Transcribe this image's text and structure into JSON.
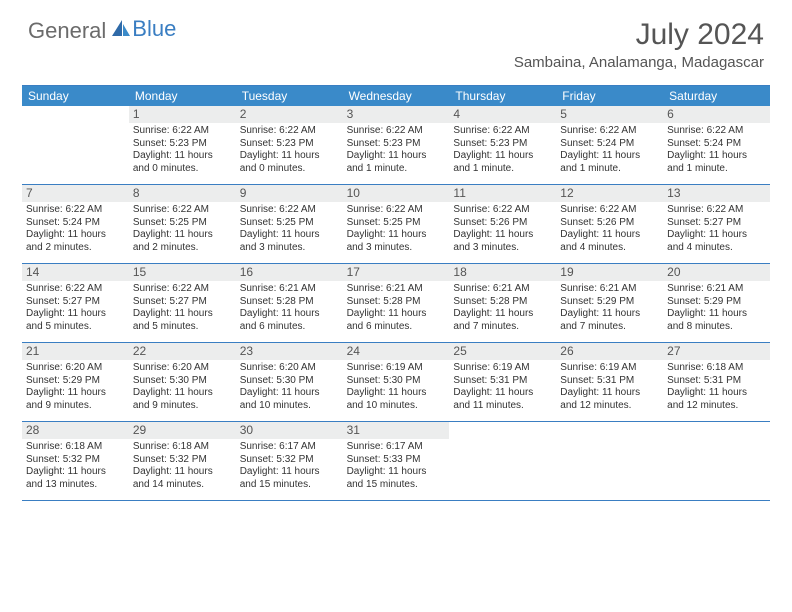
{
  "brand": {
    "part1": "General",
    "part2": "Blue"
  },
  "title": "July 2024",
  "location": "Sambaina, Analamanga, Madagascar",
  "colors": {
    "header_bg": "#3a8ac9",
    "border": "#3a7ec2",
    "daynum_bg": "#eceded",
    "text": "#333333",
    "title_text": "#555555"
  },
  "weekdays": [
    "Sunday",
    "Monday",
    "Tuesday",
    "Wednesday",
    "Thursday",
    "Friday",
    "Saturday"
  ],
  "weeks": [
    [
      {
        "n": "",
        "sr": "",
        "ss": "",
        "dl": ""
      },
      {
        "n": "1",
        "sr": "Sunrise: 6:22 AM",
        "ss": "Sunset: 5:23 PM",
        "dl": "Daylight: 11 hours and 0 minutes."
      },
      {
        "n": "2",
        "sr": "Sunrise: 6:22 AM",
        "ss": "Sunset: 5:23 PM",
        "dl": "Daylight: 11 hours and 0 minutes."
      },
      {
        "n": "3",
        "sr": "Sunrise: 6:22 AM",
        "ss": "Sunset: 5:23 PM",
        "dl": "Daylight: 11 hours and 1 minute."
      },
      {
        "n": "4",
        "sr": "Sunrise: 6:22 AM",
        "ss": "Sunset: 5:23 PM",
        "dl": "Daylight: 11 hours and 1 minute."
      },
      {
        "n": "5",
        "sr": "Sunrise: 6:22 AM",
        "ss": "Sunset: 5:24 PM",
        "dl": "Daylight: 11 hours and 1 minute."
      },
      {
        "n": "6",
        "sr": "Sunrise: 6:22 AM",
        "ss": "Sunset: 5:24 PM",
        "dl": "Daylight: 11 hours and 1 minute."
      }
    ],
    [
      {
        "n": "7",
        "sr": "Sunrise: 6:22 AM",
        "ss": "Sunset: 5:24 PM",
        "dl": "Daylight: 11 hours and 2 minutes."
      },
      {
        "n": "8",
        "sr": "Sunrise: 6:22 AM",
        "ss": "Sunset: 5:25 PM",
        "dl": "Daylight: 11 hours and 2 minutes."
      },
      {
        "n": "9",
        "sr": "Sunrise: 6:22 AM",
        "ss": "Sunset: 5:25 PM",
        "dl": "Daylight: 11 hours and 3 minutes."
      },
      {
        "n": "10",
        "sr": "Sunrise: 6:22 AM",
        "ss": "Sunset: 5:25 PM",
        "dl": "Daylight: 11 hours and 3 minutes."
      },
      {
        "n": "11",
        "sr": "Sunrise: 6:22 AM",
        "ss": "Sunset: 5:26 PM",
        "dl": "Daylight: 11 hours and 3 minutes."
      },
      {
        "n": "12",
        "sr": "Sunrise: 6:22 AM",
        "ss": "Sunset: 5:26 PM",
        "dl": "Daylight: 11 hours and 4 minutes."
      },
      {
        "n": "13",
        "sr": "Sunrise: 6:22 AM",
        "ss": "Sunset: 5:27 PM",
        "dl": "Daylight: 11 hours and 4 minutes."
      }
    ],
    [
      {
        "n": "14",
        "sr": "Sunrise: 6:22 AM",
        "ss": "Sunset: 5:27 PM",
        "dl": "Daylight: 11 hours and 5 minutes."
      },
      {
        "n": "15",
        "sr": "Sunrise: 6:22 AM",
        "ss": "Sunset: 5:27 PM",
        "dl": "Daylight: 11 hours and 5 minutes."
      },
      {
        "n": "16",
        "sr": "Sunrise: 6:21 AM",
        "ss": "Sunset: 5:28 PM",
        "dl": "Daylight: 11 hours and 6 minutes."
      },
      {
        "n": "17",
        "sr": "Sunrise: 6:21 AM",
        "ss": "Sunset: 5:28 PM",
        "dl": "Daylight: 11 hours and 6 minutes."
      },
      {
        "n": "18",
        "sr": "Sunrise: 6:21 AM",
        "ss": "Sunset: 5:28 PM",
        "dl": "Daylight: 11 hours and 7 minutes."
      },
      {
        "n": "19",
        "sr": "Sunrise: 6:21 AM",
        "ss": "Sunset: 5:29 PM",
        "dl": "Daylight: 11 hours and 7 minutes."
      },
      {
        "n": "20",
        "sr": "Sunrise: 6:21 AM",
        "ss": "Sunset: 5:29 PM",
        "dl": "Daylight: 11 hours and 8 minutes."
      }
    ],
    [
      {
        "n": "21",
        "sr": "Sunrise: 6:20 AM",
        "ss": "Sunset: 5:29 PM",
        "dl": "Daylight: 11 hours and 9 minutes."
      },
      {
        "n": "22",
        "sr": "Sunrise: 6:20 AM",
        "ss": "Sunset: 5:30 PM",
        "dl": "Daylight: 11 hours and 9 minutes."
      },
      {
        "n": "23",
        "sr": "Sunrise: 6:20 AM",
        "ss": "Sunset: 5:30 PM",
        "dl": "Daylight: 11 hours and 10 minutes."
      },
      {
        "n": "24",
        "sr": "Sunrise: 6:19 AM",
        "ss": "Sunset: 5:30 PM",
        "dl": "Daylight: 11 hours and 10 minutes."
      },
      {
        "n": "25",
        "sr": "Sunrise: 6:19 AM",
        "ss": "Sunset: 5:31 PM",
        "dl": "Daylight: 11 hours and 11 minutes."
      },
      {
        "n": "26",
        "sr": "Sunrise: 6:19 AM",
        "ss": "Sunset: 5:31 PM",
        "dl": "Daylight: 11 hours and 12 minutes."
      },
      {
        "n": "27",
        "sr": "Sunrise: 6:18 AM",
        "ss": "Sunset: 5:31 PM",
        "dl": "Daylight: 11 hours and 12 minutes."
      }
    ],
    [
      {
        "n": "28",
        "sr": "Sunrise: 6:18 AM",
        "ss": "Sunset: 5:32 PM",
        "dl": "Daylight: 11 hours and 13 minutes."
      },
      {
        "n": "29",
        "sr": "Sunrise: 6:18 AM",
        "ss": "Sunset: 5:32 PM",
        "dl": "Daylight: 11 hours and 14 minutes."
      },
      {
        "n": "30",
        "sr": "Sunrise: 6:17 AM",
        "ss": "Sunset: 5:32 PM",
        "dl": "Daylight: 11 hours and 15 minutes."
      },
      {
        "n": "31",
        "sr": "Sunrise: 6:17 AM",
        "ss": "Sunset: 5:33 PM",
        "dl": "Daylight: 11 hours and 15 minutes."
      },
      {
        "n": "",
        "sr": "",
        "ss": "",
        "dl": ""
      },
      {
        "n": "",
        "sr": "",
        "ss": "",
        "dl": ""
      },
      {
        "n": "",
        "sr": "",
        "ss": "",
        "dl": ""
      }
    ]
  ]
}
